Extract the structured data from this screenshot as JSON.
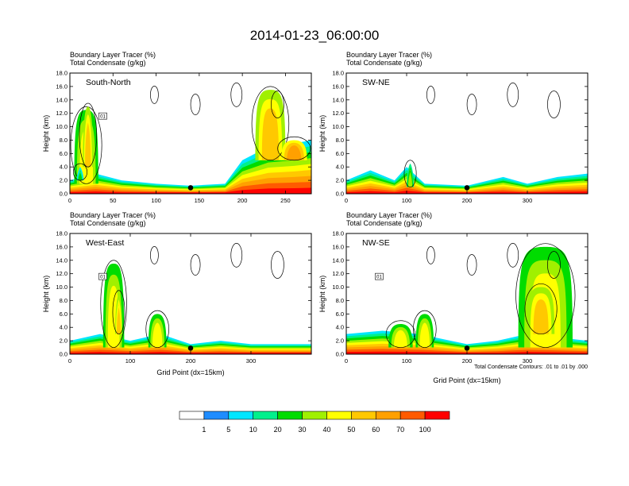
{
  "chart_data": {
    "type": "heatmap",
    "title": "2014-01-23_06:00:00",
    "panel_headers": [
      "Boundary Layer Tracer   (%)",
      "Total Condensate   (g/kg)"
    ],
    "y_label": "Height (km)",
    "x_label": "Grid Point (dx=15km)",
    "y_range": [
      0,
      18
    ],
    "y_ticks": [
      "0.0",
      "2.0",
      "4.0",
      "6.0",
      "8.0",
      "10.0",
      "12.0",
      "14.0",
      "16.0",
      "18.0"
    ],
    "footnote": "Total Condensate Contours: .01 to .01 by .000",
    "panels": [
      {
        "name": "South-North",
        "x_range": [
          0,
          280
        ],
        "x_ticks": [
          "0",
          "50",
          "100",
          "150",
          "200",
          "250"
        ],
        "marker_x": 140,
        "label_01": "01",
        "plumes": [
          {
            "x": 5,
            "w": 28,
            "bot": 1.5,
            "top": 12.5,
            "lvl": 20
          },
          {
            "x": 15,
            "w": 12,
            "bot": 4,
            "top": 13,
            "lvl": 30
          },
          {
            "x": 8,
            "w": 8,
            "bot": 2,
            "top": 4,
            "lvl": 5
          },
          {
            "x": 215,
            "w": 35,
            "bot": 5,
            "top": 15.5,
            "lvl": 30
          },
          {
            "x": 245,
            "w": 30,
            "bot": 5,
            "top": 8,
            "lvl": 40
          }
        ],
        "boundary_layer": [
          {
            "x": 0,
            "t": 2
          },
          {
            "x": 30,
            "t": 3
          },
          {
            "x": 60,
            "t": 2
          },
          {
            "x": 100,
            "t": 1.5
          },
          {
            "x": 140,
            "t": 1.2
          },
          {
            "x": 180,
            "t": 1.5
          },
          {
            "x": 200,
            "t": 5
          },
          {
            "x": 230,
            "t": 7
          },
          {
            "x": 260,
            "t": 7.5
          },
          {
            "x": 280,
            "t": 8
          }
        ]
      },
      {
        "name": "SW-NE",
        "x_range": [
          0,
          400
        ],
        "x_ticks": [
          "0",
          "100",
          "200",
          "300"
        ],
        "marker_x": 200,
        "label_01": "",
        "plumes": [
          {
            "x": 100,
            "w": 12,
            "bot": 1,
            "top": 4.5,
            "lvl": 10
          }
        ],
        "boundary_layer": [
          {
            "x": 0,
            "t": 2
          },
          {
            "x": 40,
            "t": 3.5
          },
          {
            "x": 80,
            "t": 2
          },
          {
            "x": 100,
            "t": 4
          },
          {
            "x": 130,
            "t": 1.5
          },
          {
            "x": 200,
            "t": 1.2
          },
          {
            "x": 260,
            "t": 2.5
          },
          {
            "x": 300,
            "t": 1.5
          },
          {
            "x": 350,
            "t": 2.5
          },
          {
            "x": 400,
            "t": 3
          }
        ]
      },
      {
        "name": "West-East",
        "x_range": [
          0,
          400
        ],
        "x_ticks": [
          "0",
          "100",
          "200",
          "300"
        ],
        "marker_x": 200,
        "label_01": "01",
        "plumes": [
          {
            "x": 55,
            "w": 35,
            "bot": 1,
            "top": 13.5,
            "lvl": 20
          },
          {
            "x": 75,
            "w": 12,
            "bot": 3,
            "top": 9,
            "lvl": 30
          },
          {
            "x": 130,
            "w": 30,
            "bot": 1,
            "top": 6,
            "lvl": 20
          }
        ],
        "boundary_layer": [
          {
            "x": 0,
            "t": 2
          },
          {
            "x": 50,
            "t": 3
          },
          {
            "x": 100,
            "t": 2
          },
          {
            "x": 150,
            "t": 3
          },
          {
            "x": 200,
            "t": 1.5
          },
          {
            "x": 250,
            "t": 2
          },
          {
            "x": 300,
            "t": 1.5
          },
          {
            "x": 400,
            "t": 1.5
          }
        ]
      },
      {
        "name": "NW-SE",
        "x_range": [
          0,
          400
        ],
        "x_ticks": [
          "0",
          "100",
          "200",
          "300"
        ],
        "marker_x": 200,
        "label_01": "01",
        "plumes": [
          {
            "x": 285,
            "w": 90,
            "bot": 1,
            "top": 16,
            "lvl": 20
          },
          {
            "x": 300,
            "w": 45,
            "bot": 3,
            "top": 10,
            "lvl": 30
          },
          {
            "x": 115,
            "w": 30,
            "bot": 1,
            "top": 6,
            "lvl": 20
          },
          {
            "x": 70,
            "w": 40,
            "bot": 1,
            "top": 4.5,
            "lvl": 20
          }
        ],
        "boundary_layer": [
          {
            "x": 0,
            "t": 3
          },
          {
            "x": 60,
            "t": 3.5
          },
          {
            "x": 120,
            "t": 3
          },
          {
            "x": 200,
            "t": 1.5
          },
          {
            "x": 250,
            "t": 2
          },
          {
            "x": 300,
            "t": 3
          },
          {
            "x": 350,
            "t": 2.5
          },
          {
            "x": 400,
            "t": 2
          }
        ]
      }
    ],
    "colorbar": {
      "levels": [
        "1",
        "5",
        "10",
        "20",
        "30",
        "40",
        "50",
        "60",
        "70",
        "100"
      ],
      "colors": [
        "#ffffff",
        "#1e8cff",
        "#00e6ff",
        "#00f08c",
        "#00dc00",
        "#a0f000",
        "#ffff00",
        "#ffc800",
        "#ffa000",
        "#ff5a00",
        "#ff0000"
      ]
    }
  }
}
